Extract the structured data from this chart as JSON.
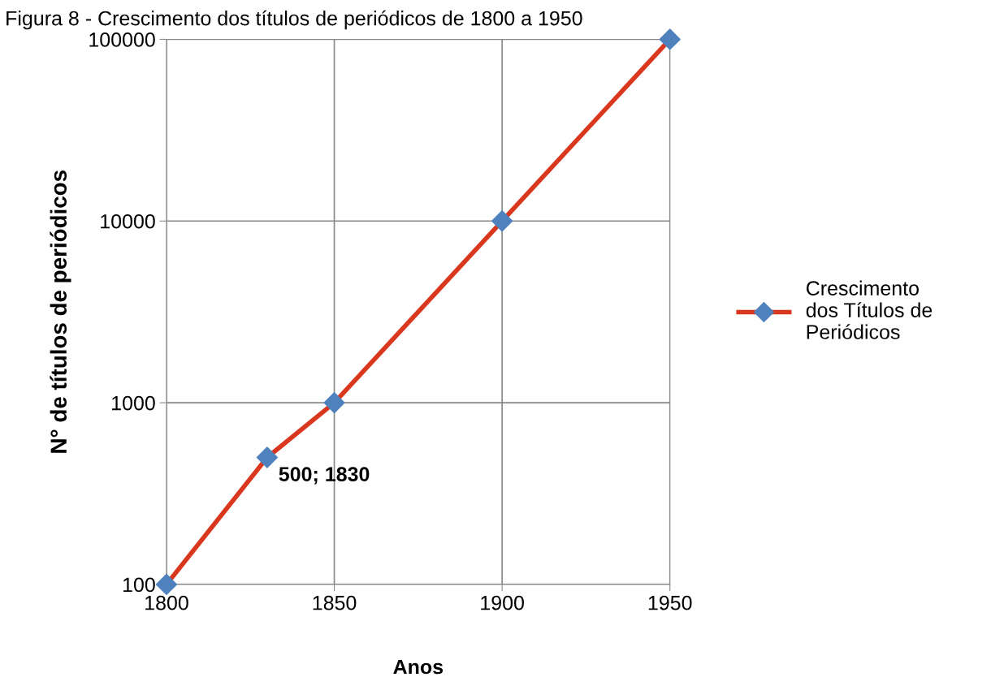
{
  "chart_data": {
    "type": "line",
    "title": "Figura 8 - Crescimento dos títulos de periódicos de 1800 a 1950",
    "xlabel": "Anos",
    "ylabel": "N° de títulos de periódicos",
    "x": [
      1800,
      1830,
      1850,
      1900,
      1950
    ],
    "series": [
      {
        "name": "Crescimento dos Títulos de Periódicos",
        "color": "#d9381e",
        "colors": [
          "#4f81bd",
          "#4f81bd",
          "#4f81bd",
          "#4f81bd",
          "#4f81bd"
        ],
        "values": [
          100,
          500,
          1000,
          10000,
          100000
        ]
      }
    ],
    "annotations": [
      {
        "text": "500; 1830",
        "x": 1830,
        "y": 500
      }
    ],
    "xlim": [
      1800,
      1950
    ],
    "xticks": [
      1800,
      1850,
      1900,
      1950
    ],
    "ylim": [
      100,
      100000
    ],
    "yticks": [
      100,
      1000,
      10000,
      100000
    ],
    "log": "y",
    "grid": true,
    "legend": "right",
    "marker": "diamond",
    "line_style": "solid"
  }
}
